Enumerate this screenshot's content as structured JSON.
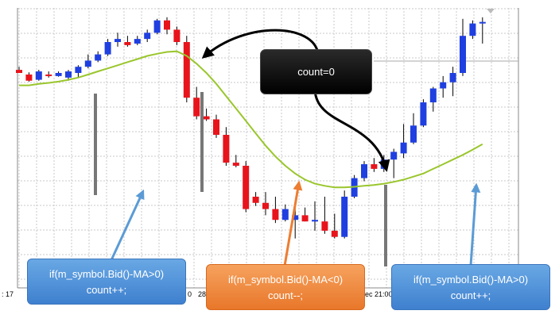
{
  "chart_data": {
    "type": "candlestick",
    "ma_color": "#9ac62c",
    "bull_color": "#1f3fe0",
    "bear_color": "#e8141c",
    "candles": [
      {
        "o": 1.0,
        "h": 2.0,
        "l": 0.0,
        "c": 0.0
      },
      {
        "o": -0.5,
        "h": 0.2,
        "l": -2.8,
        "c": -2.5
      },
      {
        "o": -2.2,
        "h": 1.0,
        "l": -2.5,
        "c": 0.5
      },
      {
        "o": -0.5,
        "h": 0.5,
        "l": -1.5,
        "c": -1.0
      },
      {
        "o": -1.0,
        "h": 0.5,
        "l": -1.2,
        "c": 0.0
      },
      {
        "o": -1.5,
        "h": 1.0,
        "l": -2.5,
        "c": 0.5
      },
      {
        "o": 0.0,
        "h": 2.5,
        "l": -1.5,
        "c": 2.0
      },
      {
        "o": 2.0,
        "h": 6.0,
        "l": 1.5,
        "c": 4.0
      },
      {
        "o": 4.0,
        "h": 7.0,
        "l": 3.5,
        "c": 6.0
      },
      {
        "o": 6.0,
        "h": 11.0,
        "l": 5.5,
        "c": 10.0
      },
      {
        "o": 10.0,
        "h": 13.0,
        "l": 8.5,
        "c": 11.0
      },
      {
        "o": 10.0,
        "h": 12.0,
        "l": 8.5,
        "c": 9.0
      },
      {
        "o": 9.5,
        "h": 12.0,
        "l": 9.0,
        "c": 11.0
      },
      {
        "o": 11.0,
        "h": 14.0,
        "l": 10.0,
        "c": 13.0
      },
      {
        "o": 13.0,
        "h": 17.5,
        "l": 12.5,
        "c": 17.0
      },
      {
        "o": 17.0,
        "h": 18.0,
        "l": 12.5,
        "c": 14.0
      },
      {
        "o": 14.0,
        "h": 15.0,
        "l": 9.0,
        "c": 10.0
      },
      {
        "o": 10.0,
        "h": 12.0,
        "l": -9.5,
        "c": -8.0
      },
      {
        "o": -8.0,
        "h": -4.5,
        "l": -15.0,
        "c": -14.0
      },
      {
        "o": -14.0,
        "h": -11.5,
        "l": -15.5,
        "c": -15.0
      },
      {
        "o": -15.0,
        "h": -13.5,
        "l": -21.0,
        "c": -20.0
      },
      {
        "o": -20.0,
        "h": -17.5,
        "l": -30.0,
        "c": -29.0
      },
      {
        "o": -29.0,
        "h": -26.5,
        "l": -30.5,
        "c": -30.0
      },
      {
        "o": -30.0,
        "h": -28.5,
        "l": -45.0,
        "c": -44.0
      },
      {
        "o": -40.0,
        "h": -38.5,
        "l": -43.0,
        "c": -42.0
      },
      {
        "o": -42.0,
        "h": -38.5,
        "l": -46.0,
        "c": -44.0
      },
      {
        "o": -44.0,
        "h": -40.0,
        "l": -48.5,
        "c": -47.5
      },
      {
        "o": -47.5,
        "h": -42.5,
        "l": -48.0,
        "c": -44.0
      },
      {
        "o": -47.5,
        "h": -43.5,
        "l": -53.5,
        "c": -46.0
      },
      {
        "o": -46.0,
        "h": -43.5,
        "l": -48.0,
        "c": -48.0
      },
      {
        "o": -47.5,
        "h": -41.5,
        "l": -51.0,
        "c": -47.5
      },
      {
        "o": -48.0,
        "h": -40.0,
        "l": -52.0,
        "c": -51.0
      },
      {
        "o": -51.0,
        "h": -45.5,
        "l": -53.5,
        "c": -53.0
      },
      {
        "o": -53.0,
        "h": -38.0,
        "l": -53.5,
        "c": -40.0
      },
      {
        "o": -40.0,
        "h": -33.0,
        "l": -40.5,
        "c": -34.0
      },
      {
        "o": -34.0,
        "h": -28.5,
        "l": -35.0,
        "c": -29.5
      },
      {
        "o": -29.5,
        "h": -27.5,
        "l": -32.0,
        "c": -31.0
      },
      {
        "o": -31.0,
        "h": -26.5,
        "l": -32.0,
        "c": -28.0
      },
      {
        "o": -28.0,
        "h": -24.5,
        "l": -34.0,
        "c": -25.5
      },
      {
        "o": -26.0,
        "h": -16.5,
        "l": -27.5,
        "c": -22.5
      },
      {
        "o": -22.5,
        "h": -13.0,
        "l": -23.0,
        "c": -17.0
      },
      {
        "o": -17.0,
        "h": -8.5,
        "l": -17.5,
        "c": -9.5
      },
      {
        "o": -9.5,
        "h": -4.5,
        "l": -12.5,
        "c": -5.0
      },
      {
        "o": -5.0,
        "h": -1.0,
        "l": -8.0,
        "c": -3.0
      },
      {
        "o": -3.0,
        "h": 2.0,
        "l": -7.5,
        "c": 0.0
      },
      {
        "o": 0.0,
        "h": 17.5,
        "l": -1.0,
        "c": 12.0
      },
      {
        "o": 12.0,
        "h": 17.0,
        "l": 11.0,
        "c": 16.0
      },
      {
        "o": 16.0,
        "h": 18.0,
        "l": 9.5,
        "c": 16.5
      }
    ],
    "ma": [
      -4.0,
      -4.0,
      -3.5,
      -3.2,
      -2.8,
      -2.2,
      -1.5,
      -0.5,
      0.5,
      1.5,
      2.5,
      3.5,
      4.5,
      5.5,
      6.2,
      6.8,
      7.0,
      5.5,
      3.0,
      0.0,
      -3.5,
      -7.5,
      -11.5,
      -15.5,
      -19.5,
      -23.5,
      -27.0,
      -30.0,
      -32.5,
      -34.5,
      -35.8,
      -36.5,
      -37.0,
      -37.0,
      -36.8,
      -36.5,
      -36.2,
      -35.8,
      -35.2,
      -34.5,
      -33.5,
      -32.5,
      -31.0,
      -29.5,
      -28.0,
      -26.5,
      -24.8,
      -23.0
    ],
    "ylim": [
      -60,
      25
    ],
    "x_ticks": [
      ": 17",
      "0",
      "28",
      "ec 21:00"
    ],
    "count_label": "count=0"
  },
  "callouts": {
    "left": {
      "line1": "if(m_symbol.Bid()-MA>0)",
      "line2": "count++;"
    },
    "mid": {
      "line1": "if(m_symbol.Bid()-MA<0)",
      "line2": "count--;"
    },
    "right": {
      "line1": "if(m_symbol.Bid()-MA>0)",
      "line2": "count++;"
    }
  }
}
